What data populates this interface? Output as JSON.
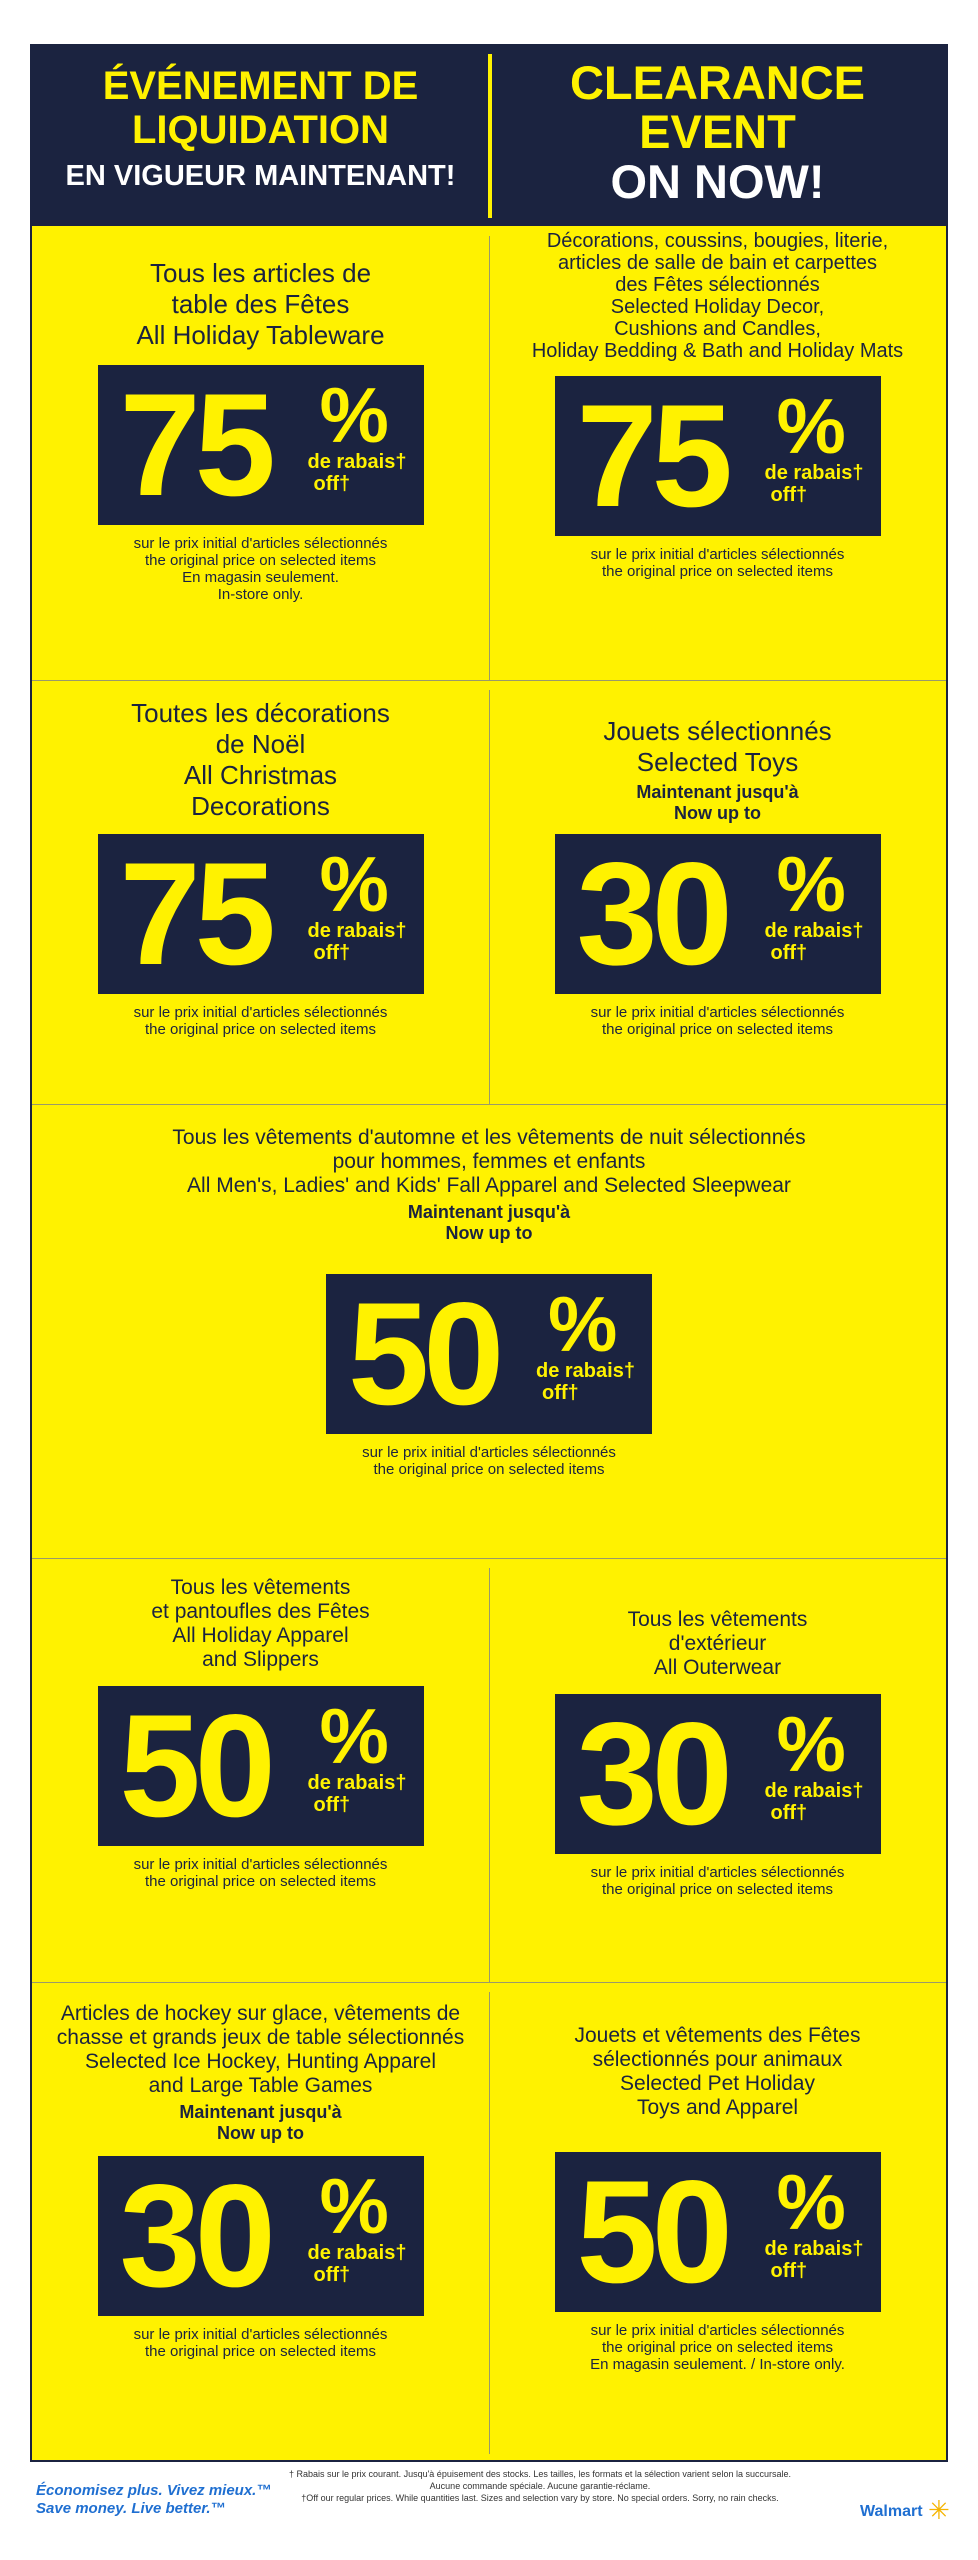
{
  "header": {
    "fr_line1": "ÉVÉNEMENT DE",
    "fr_line2": "LIQUIDATION",
    "fr_line3": "EN VIGUEUR MAINTENANT!",
    "en_line1": "CLEARANCE",
    "en_line2": "EVENT",
    "en_line3": "ON NOW!"
  },
  "labels": {
    "percent": "%",
    "de_rabais": "de rabais†",
    "off": "off†",
    "upto_fr": "Maintenant jusqu'à",
    "upto_en": "Now up to",
    "fine_fr": "sur le prix initial d'articles sélectionnés",
    "fine_en": "the original price on selected items",
    "instore_fr": "En magasin seulement.",
    "instore_en": "In-store only.",
    "instore_combined": "En magasin seulement. / In-store only."
  },
  "deals": {
    "tableware": {
      "t1": "Tous les articles de",
      "t2": "table des Fêtes",
      "t3": "All Holiday Tableware",
      "pct": "75"
    },
    "decor": {
      "t1": "Décorations, coussins, bougies, literie,",
      "t2": "articles de salle de bain et carpettes",
      "t3": "des Fêtes sélectionnés",
      "t4": "Selected Holiday Decor,",
      "t5": "Cushions and Candles,",
      "t6": "Holiday Bedding & Bath and Holiday Mats",
      "pct": "75"
    },
    "christmas": {
      "t1": "Toutes les décorations",
      "t2": "de Noël",
      "t3": "All Christmas",
      "t4": "Decorations",
      "pct": "75"
    },
    "toys": {
      "t1": "Jouets sélectionnés",
      "t2": "Selected Toys",
      "pct": "30"
    },
    "fall": {
      "t1": "Tous les vêtements d'automne et les vêtements de nuit sélectionnés",
      "t2": "pour hommes, femmes et enfants",
      "t3": "All Men's, Ladies' and Kids' Fall Apparel and Selected Sleepwear",
      "pct": "50"
    },
    "apparel": {
      "t1": "Tous les vêtements",
      "t2": "et pantoufles des Fêtes",
      "t3": "All Holiday Apparel",
      "t4": "and Slippers",
      "pct": "50"
    },
    "outerwear": {
      "t1": "Tous les vêtements",
      "t2": "d'extérieur",
      "t3": "All Outerwear",
      "pct": "30"
    },
    "hockey": {
      "t1": "Articles de hockey sur glace, vêtements de",
      "t2": "chasse et grands jeux de table sélectionnés",
      "t3": "Selected Ice Hockey, Hunting Apparel",
      "t4": "and Large Table Games",
      "pct": "30"
    },
    "pet": {
      "t1": "Jouets et vêtements des Fêtes",
      "t2": "sélectionnés pour animaux",
      "t3": "Selected Pet Holiday",
      "t4": "Toys and Apparel",
      "pct": "50"
    }
  },
  "footer": {
    "slogan_fr": "Économisez plus. Vivez mieux.™",
    "slogan_en": "Save money. Live better.™",
    "legal1": "† Rabais sur le prix courant. Jusqu'à épuisement des stocks. Les tailles, les formats et la sélection varient selon la succursale.",
    "legal2": "Aucune commande spéciale. Aucune garantie-réclame.",
    "legal3": "†Off our regular prices. While quantities last. Sizes and selection vary by store. No special orders. Sorry, no rain checks.",
    "brand": "Walmart",
    "spark": "✳"
  },
  "colors": {
    "navy": "#1b2340",
    "yellow": "#fff200",
    "blue": "#1f6fd1",
    "spark": "#f5b400"
  }
}
